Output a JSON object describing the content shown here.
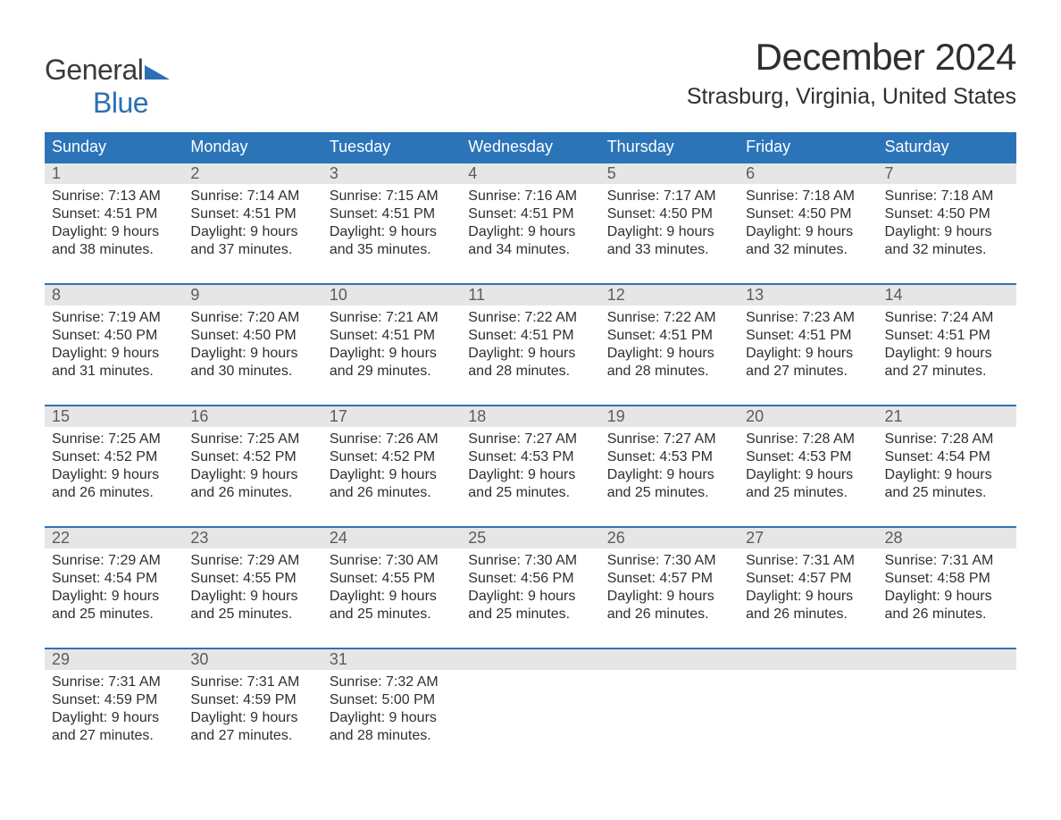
{
  "brand": {
    "word1": "General",
    "word2": "Blue"
  },
  "title": "December 2024",
  "location": "Strasburg, Virginia, United States",
  "colors": {
    "header_bg": "#2c74b8",
    "daynum_bg": "#e6e6e6",
    "text": "#2f2f2f",
    "brand_blue": "#2c6fb5"
  },
  "dow": [
    "Sunday",
    "Monday",
    "Tuesday",
    "Wednesday",
    "Thursday",
    "Friday",
    "Saturday"
  ],
  "weeks": [
    [
      {
        "n": "1",
        "sunrise": "7:13 AM",
        "sunset": "4:51 PM",
        "daylight": "9 hours and 38 minutes."
      },
      {
        "n": "2",
        "sunrise": "7:14 AM",
        "sunset": "4:51 PM",
        "daylight": "9 hours and 37 minutes."
      },
      {
        "n": "3",
        "sunrise": "7:15 AM",
        "sunset": "4:51 PM",
        "daylight": "9 hours and 35 minutes."
      },
      {
        "n": "4",
        "sunrise": "7:16 AM",
        "sunset": "4:51 PM",
        "daylight": "9 hours and 34 minutes."
      },
      {
        "n": "5",
        "sunrise": "7:17 AM",
        "sunset": "4:50 PM",
        "daylight": "9 hours and 33 minutes."
      },
      {
        "n": "6",
        "sunrise": "7:18 AM",
        "sunset": "4:50 PM",
        "daylight": "9 hours and 32 minutes."
      },
      {
        "n": "7",
        "sunrise": "7:18 AM",
        "sunset": "4:50 PM",
        "daylight": "9 hours and 32 minutes."
      }
    ],
    [
      {
        "n": "8",
        "sunrise": "7:19 AM",
        "sunset": "4:50 PM",
        "daylight": "9 hours and 31 minutes."
      },
      {
        "n": "9",
        "sunrise": "7:20 AM",
        "sunset": "4:50 PM",
        "daylight": "9 hours and 30 minutes."
      },
      {
        "n": "10",
        "sunrise": "7:21 AM",
        "sunset": "4:51 PM",
        "daylight": "9 hours and 29 minutes."
      },
      {
        "n": "11",
        "sunrise": "7:22 AM",
        "sunset": "4:51 PM",
        "daylight": "9 hours and 28 minutes."
      },
      {
        "n": "12",
        "sunrise": "7:22 AM",
        "sunset": "4:51 PM",
        "daylight": "9 hours and 28 minutes."
      },
      {
        "n": "13",
        "sunrise": "7:23 AM",
        "sunset": "4:51 PM",
        "daylight": "9 hours and 27 minutes."
      },
      {
        "n": "14",
        "sunrise": "7:24 AM",
        "sunset": "4:51 PM",
        "daylight": "9 hours and 27 minutes."
      }
    ],
    [
      {
        "n": "15",
        "sunrise": "7:25 AM",
        "sunset": "4:52 PM",
        "daylight": "9 hours and 26 minutes."
      },
      {
        "n": "16",
        "sunrise": "7:25 AM",
        "sunset": "4:52 PM",
        "daylight": "9 hours and 26 minutes."
      },
      {
        "n": "17",
        "sunrise": "7:26 AM",
        "sunset": "4:52 PM",
        "daylight": "9 hours and 26 minutes."
      },
      {
        "n": "18",
        "sunrise": "7:27 AM",
        "sunset": "4:53 PM",
        "daylight": "9 hours and 25 minutes."
      },
      {
        "n": "19",
        "sunrise": "7:27 AM",
        "sunset": "4:53 PM",
        "daylight": "9 hours and 25 minutes."
      },
      {
        "n": "20",
        "sunrise": "7:28 AM",
        "sunset": "4:53 PM",
        "daylight": "9 hours and 25 minutes."
      },
      {
        "n": "21",
        "sunrise": "7:28 AM",
        "sunset": "4:54 PM",
        "daylight": "9 hours and 25 minutes."
      }
    ],
    [
      {
        "n": "22",
        "sunrise": "7:29 AM",
        "sunset": "4:54 PM",
        "daylight": "9 hours and 25 minutes."
      },
      {
        "n": "23",
        "sunrise": "7:29 AM",
        "sunset": "4:55 PM",
        "daylight": "9 hours and 25 minutes."
      },
      {
        "n": "24",
        "sunrise": "7:30 AM",
        "sunset": "4:55 PM",
        "daylight": "9 hours and 25 minutes."
      },
      {
        "n": "25",
        "sunrise": "7:30 AM",
        "sunset": "4:56 PM",
        "daylight": "9 hours and 25 minutes."
      },
      {
        "n": "26",
        "sunrise": "7:30 AM",
        "sunset": "4:57 PM",
        "daylight": "9 hours and 26 minutes."
      },
      {
        "n": "27",
        "sunrise": "7:31 AM",
        "sunset": "4:57 PM",
        "daylight": "9 hours and 26 minutes."
      },
      {
        "n": "28",
        "sunrise": "7:31 AM",
        "sunset": "4:58 PM",
        "daylight": "9 hours and 26 minutes."
      }
    ],
    [
      {
        "n": "29",
        "sunrise": "7:31 AM",
        "sunset": "4:59 PM",
        "daylight": "9 hours and 27 minutes."
      },
      {
        "n": "30",
        "sunrise": "7:31 AM",
        "sunset": "4:59 PM",
        "daylight": "9 hours and 27 minutes."
      },
      {
        "n": "31",
        "sunrise": "7:32 AM",
        "sunset": "5:00 PM",
        "daylight": "9 hours and 28 minutes."
      },
      null,
      null,
      null,
      null
    ]
  ],
  "labels": {
    "sunrise": "Sunrise: ",
    "sunset": "Sunset: ",
    "daylight": "Daylight: "
  }
}
